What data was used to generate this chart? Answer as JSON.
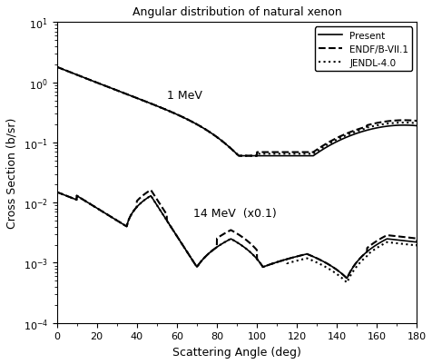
{
  "title": "Angular distribution of natural xenon",
  "xlabel": "Scattering Angle (deg)",
  "ylabel": "Cross Section (b/sr)",
  "xlim": [
    0,
    180
  ],
  "legend_labels": [
    "Present",
    "ENDF/B-VII.1",
    "JENDL-4.0"
  ],
  "label_1MeV": "1 MeV",
  "label_14MeV": "14 MeV  (x0.1)"
}
